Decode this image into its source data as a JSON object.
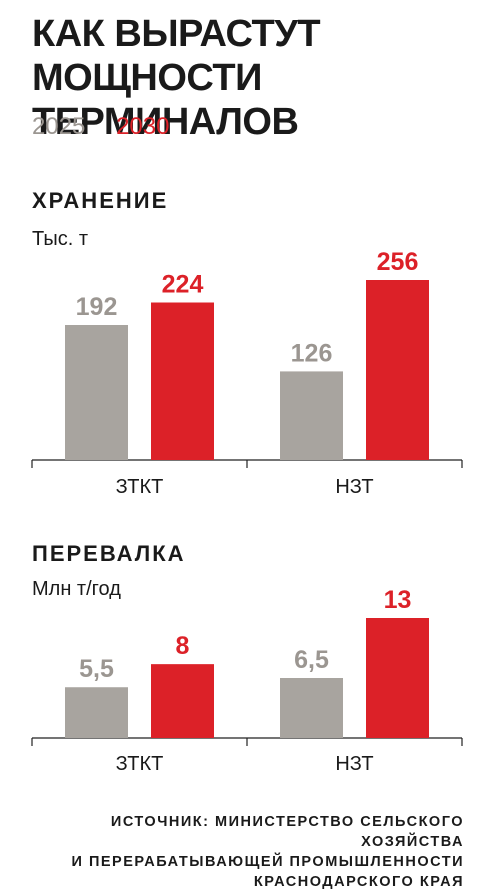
{
  "title_lines": [
    "КАК ВЫРАСТУТ",
    "МОЩНОСТИ ТЕРМИНАЛОВ"
  ],
  "legend": [
    {
      "label": "2025",
      "color": "#a8a49f"
    },
    {
      "label": "2030",
      "color": "#dc2128"
    }
  ],
  "chart_data": [
    {
      "type": "bar",
      "title": "ХРАНЕНИЕ",
      "ylabel": "Тыс. т",
      "categories": [
        "ЗТКТ",
        "НЗТ"
      ],
      "series": [
        {
          "name": "2025",
          "values": [
            192,
            126
          ],
          "labels": [
            "192",
            "126"
          ]
        },
        {
          "name": "2030",
          "values": [
            224,
            256
          ],
          "labels": [
            "224",
            "256"
          ]
        }
      ],
      "ylim": [
        0,
        256
      ],
      "grid": false
    },
    {
      "type": "bar",
      "title": "ПЕРЕВАЛКА",
      "ylabel": "Млн т/год",
      "categories": [
        "ЗТКТ",
        "НЗТ"
      ],
      "series": [
        {
          "name": "2025",
          "values": [
            5.5,
            6.5
          ],
          "labels": [
            "5,5",
            "6,5"
          ]
        },
        {
          "name": "2030",
          "values": [
            8,
            13
          ],
          "labels": [
            "8",
            "13"
          ]
        }
      ],
      "ylim": [
        0,
        13
      ],
      "grid": false
    }
  ],
  "source_lines": [
    "ИСТОЧНИК: МИНИСТЕРСТВО СЕЛЬСКОГО ХОЗЯЙСТВА",
    "И ПЕРЕРАБАТЫВАЮЩЕЙ ПРОМЫШЛЕННОСТИ",
    "КРАСНОДАРСКОГО КРАЯ"
  ]
}
